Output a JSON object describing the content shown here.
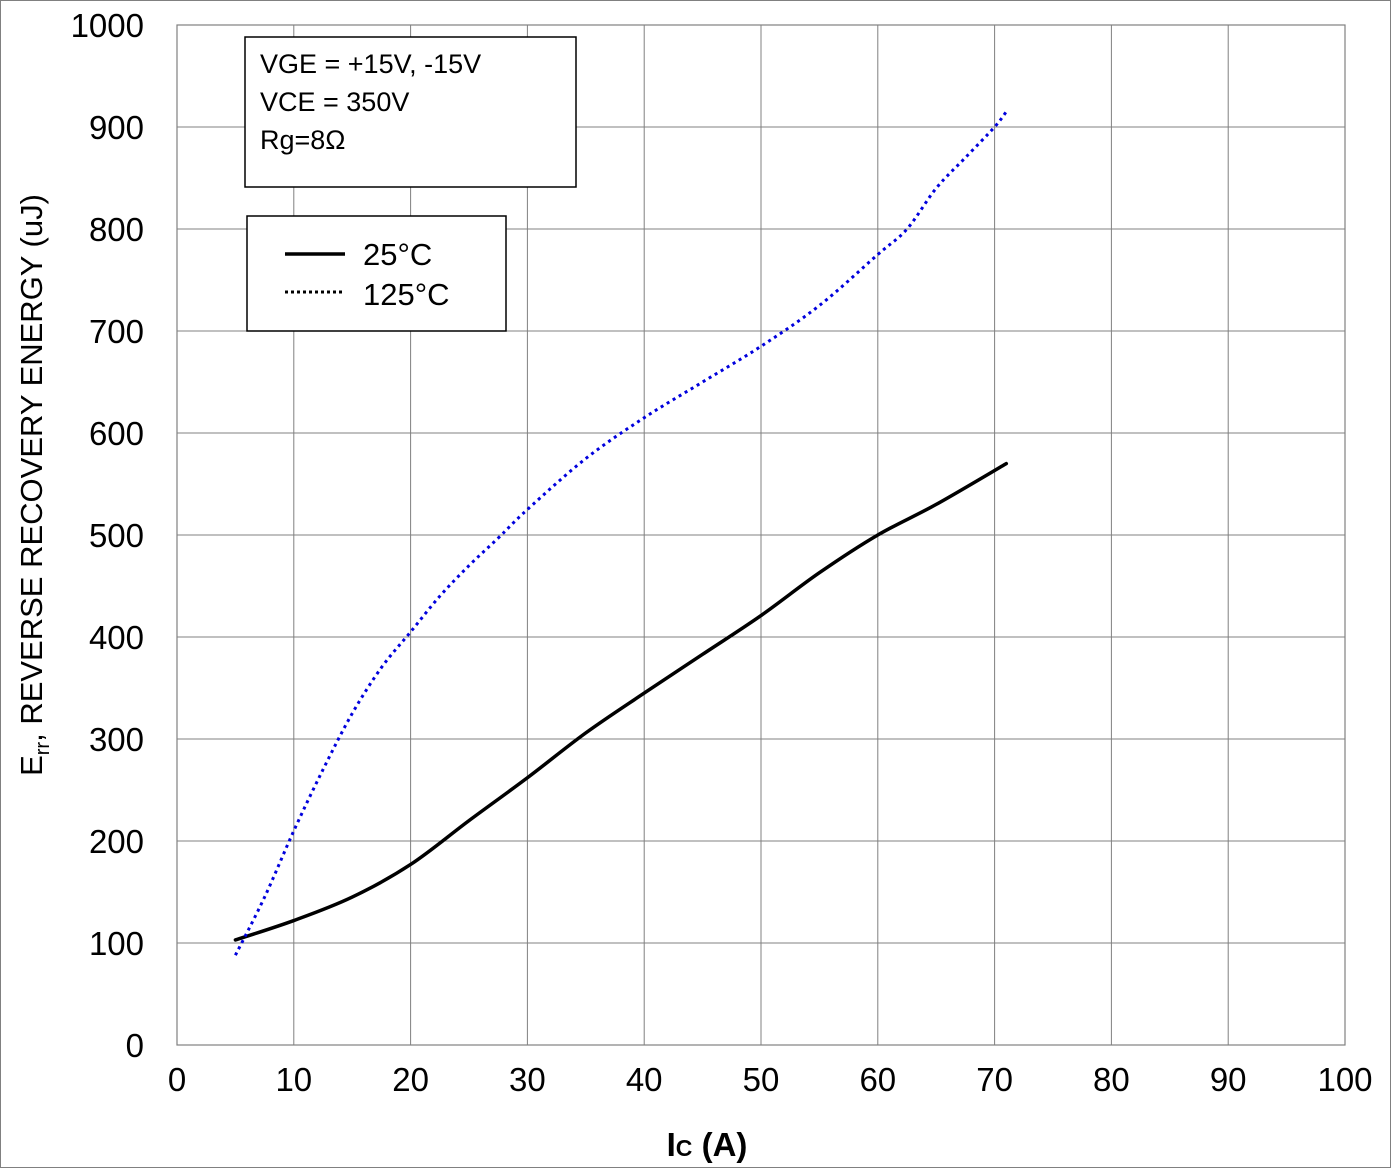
{
  "chart_data": {
    "type": "line",
    "xlabel": "IC (A)",
    "xlabel_main": "I",
    "xlabel_sub": "C",
    "xlabel_rest": " (A)",
    "ylabel_main": "E",
    "ylabel_sub": "rr",
    "ylabel_rest": ", REVERSE RECOVERY ENERGY (uJ)",
    "xlim": [
      0,
      100
    ],
    "ylim": [
      0,
      1000
    ],
    "x_ticks": [
      0,
      10,
      20,
      30,
      40,
      50,
      60,
      70,
      80,
      90,
      100
    ],
    "y_ticks": [
      0,
      100,
      200,
      300,
      400,
      500,
      600,
      700,
      800,
      900,
      1000
    ],
    "grid": true,
    "legend_position": "top-left",
    "conditions": [
      "VGE = +15V, -15V",
      "VCE = 350V",
      "Rg=8Ω"
    ],
    "series": [
      {
        "name": "25°C",
        "style": "solid",
        "color": "#000000",
        "x": [
          5,
          10,
          15,
          20,
          25,
          30,
          35,
          40,
          45,
          50,
          55,
          60,
          65,
          71
        ],
        "y": [
          103,
          122,
          145,
          177,
          220,
          262,
          306,
          345,
          383,
          421,
          463,
          500,
          530,
          570
        ]
      },
      {
        "name": "125°C",
        "style": "dotted",
        "color": "#0000dd",
        "x": [
          5,
          7.5,
          10,
          12.5,
          15,
          17.5,
          20,
          22.5,
          25,
          27.5,
          30,
          35,
          40,
          45,
          50,
          55,
          60,
          62.5,
          65,
          67.5,
          70,
          71
        ],
        "y": [
          88,
          145,
          210,
          270,
          325,
          370,
          405,
          440,
          470,
          497,
          525,
          575,
          615,
          650,
          685,
          725,
          775,
          800,
          840,
          870,
          900,
          915
        ]
      }
    ]
  }
}
